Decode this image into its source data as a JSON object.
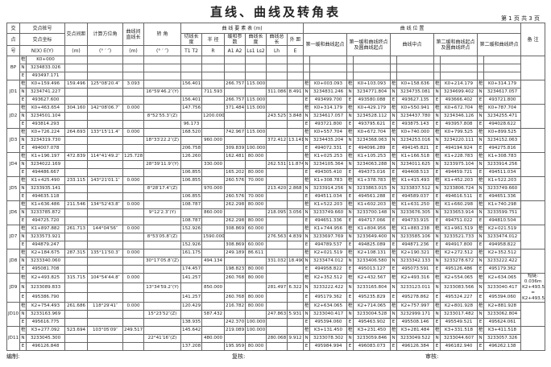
{
  "header": {
    "title": "直线、曲线及转角表",
    "page": "第 1 页   共 3 页",
    "h": {
      "jd1": "交",
      "jd2": "点",
      "jd3": "号",
      "stake": "交点桩号",
      "coord": "交点坐标",
      "coordNE": "N(X)   E(Y)",
      "dist": "交点间距",
      "distU": "(m)",
      "azi": "计算方位角",
      "aziU": "(° ′ ″)",
      "straight": "曲线间直线长",
      "straightU": "(m)",
      "angle": "转 角",
      "angleU": "(° ′ ″)",
      "elem": "曲 线 要 素 表 (m)",
      "T": "切线长度",
      "R": "半 径",
      "A": "缓和参数",
      "L": "曲线长度",
      "Lh": "曲线总长",
      "E": "外 距",
      "Tu": "T1  T2",
      "Ru": "R",
      "Au": "A1  A2",
      "Lu": "Ls1 Ls2",
      "Lhu": "Lh",
      "Eu": "E",
      "pos": "曲 线 位 置",
      "p1": "第一缓和曲线起点",
      "p2": "第一缓和曲线终点及圆曲线起点",
      "p3": "曲线中点",
      "p4": "第二缓和曲线起点及圆曲线终点",
      "p5": "第二缓和曲线终点",
      "note": "备 注"
    }
  },
  "markers": [
    "桩",
    "N",
    "E"
  ],
  "groups": [
    {
      "jd": "BP",
      "rows": [
        {
          "c": "K0+000"
        },
        {
          "c": "3234833.026"
        },
        {
          "c": "493497.171"
        }
      ]
    },
    {
      "jd": "JD1",
      "rows": [
        {
          "c": "K0+159.496",
          "d": "159.496",
          "az": "125°08′20.4″",
          "s": "3.093",
          "T": "156.401",
          "A": "266.757",
          "L": "115.000",
          "p": [
            "K0+003.093",
            "K0+103.093",
            "K0+158.636",
            "K0+214.179",
            "K0+314.179"
          ]
        },
        {
          "c": "3234741.227",
          "ang": "16°59′46.2″(Y)",
          "R": "711.593",
          "Lh": "311.086",
          "E": "8.491",
          "p": [
            "3234831.246",
            "3234771.804",
            "3234735.081",
            "3234699.402",
            "3234617.057"
          ]
        },
        {
          "c": "493627.600",
          "T": "156.401",
          "A": "266.757",
          "L": "115.000",
          "p": [
            "493499.700",
            "493580.088",
            "493627.135",
            "493666.402",
            "493721.800"
          ]
        }
      ]
    },
    {
      "jd": "JD2",
      "rows": [
        {
          "c": "K0+463.654",
          "d": "304.160",
          "az": "142°08′06.7″",
          "s": "0.000",
          "T": "147.756",
          "A": "371.484",
          "L": "115.000",
          "p": [
            "K0+314.179",
            "K0+429.179",
            "K0+550.941",
            "K0+672.704",
            "K0+787.704"
          ]
        },
        {
          "c": "3234501.104",
          "ang": "8°52′55.3″(Z)",
          "R": "1200.000",
          "Lh": "243.525",
          "E": "3.848",
          "p": [
            "3234617.057",
            "3234528.112",
            "3234437.780",
            "3234346.126",
            "3234255.471"
          ]
        },
        {
          "c": "493814.293",
          "T": "96.173",
          "p": [
            "493721.800",
            "493795.621",
            "493875.143",
            "493957.808",
            "494028.622"
          ]
        }
      ]
    },
    {
      "jd": "JD3",
      "rows": [
        {
          "c": "K0+726.224",
          "d": "264.693",
          "az": "133°15′11.4″",
          "s": "0.000",
          "T": "168.520",
          "A": "742.967",
          "L": "115.000",
          "p": [
            "K0+557.704",
            "K0+672.704",
            "K0+740.000",
            "K0+799.525",
            "K0+899.525"
          ]
        },
        {
          "c": "3234319.730",
          "ang": "18°33′22.2″(Z)",
          "R": "960.000",
          "Lh": "372.412",
          "E": "13.141",
          "p": [
            "3234435.204",
            "3234368.063",
            "3234253.016",
            "3234220.111",
            "3234152.063"
          ]
        },
        {
          "c": "494007.078",
          "T": "206.758",
          "A": "309.839",
          "L": "100.000",
          "p": [
            "494072.331",
            "494096.289",
            "494145.821",
            "494194.924",
            "494275.816"
          ]
        }
      ]
    },
    {
      "jd": "JD4",
      "rows": [
        {
          "c": "K1+196.197",
          "d": "472.839",
          "az": "114°41′49.2″",
          "s": "125.728",
          "T": "126.260",
          "A": "162.481",
          "L": "80.000",
          "p": [
            "K1+025.253",
            "K1+105.253",
            "K1+166.518",
            "K1+228.783",
            "K1+308.783"
          ]
        },
        {
          "c": "3234022.169",
          "ang": "28°39′11.9″(Y)",
          "R": "330.000",
          "Lh": "262.531",
          "E": "11.874",
          "p": [
            "3234105.364",
            "3234063.288",
            "3234011.625",
            "3233975.104",
            "3233914.256"
          ]
        },
        {
          "c": "494486.667",
          "T": "106.855",
          "A": "165.202",
          "L": "80.000",
          "p": [
            "494305.410",
            "494373.016",
            "494408.513",
            "494459.721",
            "494511.034"
          ]
        }
      ]
    },
    {
      "jd": "JD5",
      "rows": [
        {
          "c": "K1+425.490",
          "d": "233.115",
          "az": "143°21′01.1″",
          "s": "0.000",
          "T": "106.855",
          "A": "260.576",
          "L": "70.000",
          "p": [
            "K1+308.783",
            "K1+378.783",
            "K1+415.493",
            "K1+452.203",
            "K1+522.203"
          ]
        },
        {
          "c": "3233935.141",
          "ang": "8°28′17.4″(Z)",
          "R": "970.000",
          "Lh": "213.420",
          "E": "2.868",
          "p": [
            "3233914.256",
            "3233863.015",
            "3233837.512",
            "3233806.724",
            "3233749.660"
          ]
        },
        {
          "c": "494635.118",
          "T": "106.855",
          "A": "260.576",
          "L": "70.000",
          "p": [
            "494511.034",
            "494561.288",
            "494589.037",
            "494616.511",
            "494651.336"
          ]
        }
      ]
    },
    {
      "jd": "JD6",
      "rows": [
        {
          "c": "K1+636.486",
          "d": "211.546",
          "az": "134°52′43.8″",
          "s": "0.000",
          "T": "108.787",
          "A": "262.298",
          "L": "80.000",
          "p": [
            "K1+522.203",
            "K1+602.203",
            "K1+631.250",
            "K1+660.298",
            "K1+740.298"
          ]
        },
        {
          "c": "3233785.872",
          "ang": "9°12′2.3″(Y)",
          "R": "860.000",
          "Lh": "218.095",
          "E": "3.056",
          "p": [
            "3233749.660",
            "3233700.148",
            "3233676.305",
            "3233653.914",
            "3233599.751"
          ]
        },
        {
          "c": "494725.720",
          "T": "108.787",
          "A": "262.298",
          "L": "80.000",
          "p": [
            "494651.336",
            "494717.066",
            "494733.915",
            "494751.022",
            "494810.504"
          ]
        }
      ]
    },
    {
      "jd": "JD7",
      "rows": [
        {
          "c": "K1+897.882",
          "d": "261.713",
          "az": "144°04′56″",
          "s": "0.000",
          "T": "152.926",
          "A": "308.869",
          "L": "60.000",
          "p": [
            "K1+744.956",
            "K1+804.956",
            "K1+883.238",
            "K1+961.519",
            "K2+021.519"
          ]
        },
        {
          "c": "3233573.921",
          "ang": "8°53′05.8″(Z)",
          "R": "1590.000",
          "Lh": "276.563",
          "E": "4.839",
          "p": [
            "3233697.769",
            "3233649.400",
            "3233585.106",
            "3233521.733",
            "3233474.012"
          ]
        },
        {
          "c": "494879.247",
          "T": "152.926",
          "A": "308.869",
          "L": "60.000",
          "p": [
            "494789.537",
            "494825.089",
            "494871.236",
            "494917.800",
            "494958.822"
          ]
        }
      ]
    },
    {
      "jd": "JD8",
      "rows": [
        {
          "c": "K2+184.675",
          "d": "287.315",
          "az": "135°11′50.3″",
          "s": "0.000",
          "T": "161.175",
          "A": "249.189",
          "L": "86.611",
          "p": [
            "K2+021.519",
            "K2+108.131",
            "K2+190.321",
            "K2+272.512",
            "K2+352.512"
          ]
        },
        {
          "c": "3233340.060",
          "ang": "30°17′05.8″(Z)",
          "R": "494.134",
          "Lh": "331.032",
          "E": "18.490",
          "p": [
            "3233474.012",
            "3233406.580",
            "3233342.133",
            "3233278.672",
            "3233222.422"
          ]
        },
        {
          "c": "495081.708",
          "T": "174.457",
          "A": "198.823",
          "L": "80.000",
          "p": [
            "494958.822",
            "495013.127",
            "495073.591",
            "495126.486",
            "495179.362"
          ]
        }
      ]
    },
    {
      "jd": "JD9",
      "note": "短链: 0.036m K2+493.522 = K2+493.558",
      "rows": [
        {
          "c": "K2+493.825",
          "d": "315.715",
          "az": "104°54′44.8″",
          "s": "0.000",
          "T": "141.257",
          "A": "260.768",
          "L": "80.000",
          "p": [
            "K2+352.512",
            "K2+432.567",
            "K2+493.316",
            "K2+554.065",
            "K2+634.065"
          ]
        },
        {
          "c": "3233089.833",
          "ang": "13°34′59.2″(Y)",
          "R": "850.000",
          "Lh": "281.497",
          "E": "6.322",
          "p": [
            "3233222.422",
            "3233165.804",
            "3233123.011",
            "3233083.566",
            "3233040.417"
          ]
        },
        {
          "c": "495386.790",
          "T": "141.257",
          "A": "260.768",
          "L": "80.000",
          "p": [
            "495179.362",
            "495235.829",
            "495278.862",
            "495324.227",
            "495394.060"
          ]
        }
      ]
    },
    {
      "jd": "JD10",
      "rows": [
        {
          "c": "K2+754.493",
          "d": "261.686",
          "az": "118°29′41″",
          "s": "0.000",
          "T": "120.429",
          "A": "216.782",
          "L": "80.000",
          "p": [
            "K2+634.065",
            "K2+714.065",
            "K2+757.997",
            "K2+801.928",
            "K2+881.928"
          ]
        },
        {
          "c": "3233163.969",
          "ang": "15°23′52″(Z)",
          "R": "587.432",
          "Lh": "247.863",
          "E": "5.931",
          "p": [
            "3233040.417",
            "3233004.528",
            "3232999.171",
            "3233017.482",
            "3233062.804"
          ]
        },
        {
          "c": "495616.775",
          "T": "138.935",
          "A": "242.370",
          "L": "100.000",
          "p": [
            "495394.060",
            "495463.902",
            "495508.146",
            "495549.521",
            "495624.061"
          ]
        }
      ]
    },
    {
      "jd": "JD11",
      "rows": [
        {
          "c": "K3+277.092",
          "d": "523.694",
          "az": "103°05′09″",
          "s": "249.517",
          "T": "145.642",
          "A": "219.089",
          "L": "100.000",
          "p": [
            "K3+131.450",
            "K3+231.450",
            "K3+281.484",
            "K3+331.518",
            "K3+411.518"
          ]
        },
        {
          "c": "3233045.300",
          "ang": "22°41′16″(Z)",
          "R": "480.000",
          "Lh": "280.068",
          "E": "9.912",
          "p": [
            "3233078.302",
            "3233059.846",
            "3233049.522",
            "3233044.607",
            "3233057.326"
          ]
        },
        {
          "c": "496126.848",
          "T": "137.208",
          "A": "195.959",
          "L": "80.000",
          "p": [
            "495984.994",
            "496083.073",
            "496126.384",
            "496182.940",
            "496262.138"
          ]
        }
      ]
    }
  ],
  "footer": {
    "made": "编制:",
    "check": "复核:",
    "audit": "审核:"
  }
}
